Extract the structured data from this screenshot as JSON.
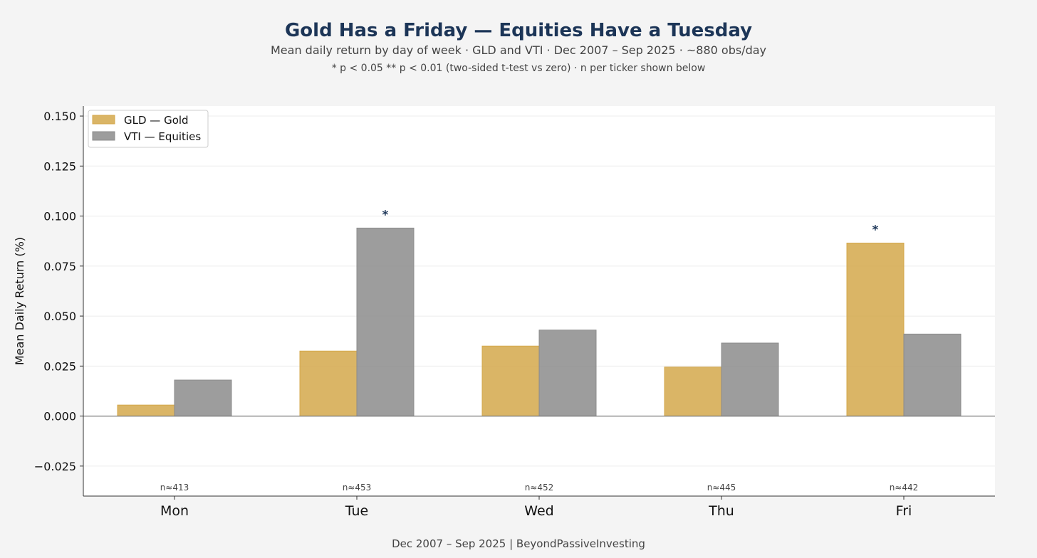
{
  "header": {
    "title": "Gold Has a Friday — Equities Have a Tuesday",
    "subtitle": "Mean daily return by day of week  ·  GLD and VTI  ·  Dec 2007 – Sep 2025  ·  ~880 obs/day",
    "note": "* p < 0.05   ** p < 0.01   (two-sided t-test vs zero)  ·  n per ticker shown below"
  },
  "footer": {
    "text": "Dec 2007 – Sep 2025   |   BeyondPassiveInvesting"
  },
  "colors": {
    "gld": "#d4a84b",
    "vti": "#8c8c8c",
    "title": "#1c3557"
  },
  "chart_data": {
    "type": "bar",
    "categories": [
      "Mon",
      "Tue",
      "Wed",
      "Thu",
      "Fri"
    ],
    "series": [
      {
        "name": "GLD — Gold",
        "values": [
          0.0055,
          0.0325,
          0.035,
          0.0245,
          0.0865
        ]
      },
      {
        "name": "VTI — Equities",
        "values": [
          0.018,
          0.094,
          0.043,
          0.0365,
          0.041
        ]
      }
    ],
    "significance": [
      {
        "category": "Tue",
        "series": "VTI — Equities",
        "marker": "*"
      },
      {
        "category": "Fri",
        "series": "GLD — Gold",
        "marker": "*"
      }
    ],
    "n_labels": [
      "n≈413",
      "n≈453",
      "n≈452",
      "n≈445",
      "n≈442"
    ],
    "xlabel": "",
    "ylabel": "Mean Daily Return (%)",
    "ylim": [
      -0.04,
      0.155
    ],
    "yticks": [
      -0.025,
      0.0,
      0.025,
      0.05,
      0.075,
      0.1,
      0.125,
      0.15
    ],
    "ytick_labels": [
      "−0.025",
      "0.000",
      "0.025",
      "0.050",
      "0.075",
      "0.100",
      "0.125",
      "0.150"
    ],
    "legend_position": "top-left",
    "grid": true
  }
}
